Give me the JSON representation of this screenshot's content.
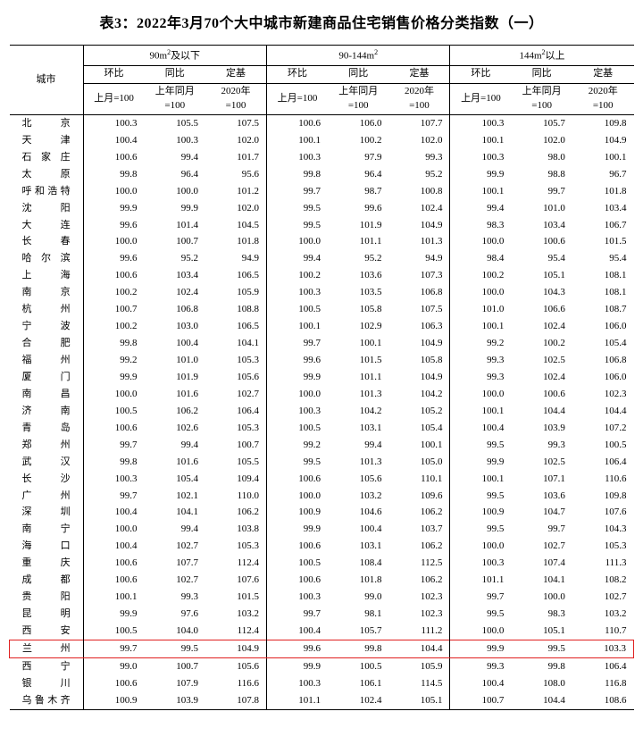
{
  "title": "表3：2022年3月70个大中城市新建商品住宅销售价格分类指数（一）",
  "header": {
    "city": "城市",
    "groups": [
      "90m²及以下",
      "90-144m²",
      "144m²以上"
    ],
    "sub": {
      "huanbi": "环比",
      "tongbi": "同比",
      "dingji": "定基"
    },
    "base": {
      "huanbi": "上月=100",
      "tongbi_l1": "上年同月",
      "tongbi_l2": "=100",
      "dingji_l1": "2020年",
      "dingji_l2": "=100"
    }
  },
  "highlight_city": "兰　　州",
  "highlight_color": "#e02020",
  "rows": [
    {
      "city": "北　　京",
      "v": [
        100.3,
        105.5,
        107.5,
        100.6,
        106.0,
        107.7,
        100.3,
        105.7,
        109.8
      ]
    },
    {
      "city": "天　　津",
      "v": [
        100.4,
        100.3,
        102.0,
        100.1,
        100.2,
        102.0,
        100.1,
        102.0,
        104.9
      ]
    },
    {
      "city": "石 家 庄",
      "v": [
        100.6,
        99.4,
        101.7,
        100.3,
        97.9,
        99.3,
        100.3,
        98.0,
        100.1
      ]
    },
    {
      "city": "太　　原",
      "v": [
        99.8,
        96.4,
        95.6,
        99.8,
        96.4,
        95.2,
        99.9,
        98.8,
        96.7
      ]
    },
    {
      "city": "呼和浩特",
      "v": [
        100.0,
        100.0,
        101.2,
        99.7,
        98.7,
        100.8,
        100.1,
        99.7,
        101.8
      ]
    },
    {
      "city": "沈　　阳",
      "v": [
        99.9,
        99.9,
        102.0,
        99.5,
        99.6,
        102.4,
        99.4,
        101.0,
        103.4
      ]
    },
    {
      "city": "大　　连",
      "v": [
        99.6,
        101.4,
        104.5,
        99.5,
        101.9,
        104.9,
        98.3,
        103.4,
        106.7
      ]
    },
    {
      "city": "长　　春",
      "v": [
        100.0,
        100.7,
        101.8,
        100.0,
        101.1,
        101.3,
        100.0,
        100.6,
        101.5
      ]
    },
    {
      "city": "哈 尔 滨",
      "v": [
        99.6,
        95.2,
        94.9,
        99.4,
        95.2,
        94.9,
        98.4,
        95.4,
        95.4
      ]
    },
    {
      "city": "上　　海",
      "v": [
        100.6,
        103.4,
        106.5,
        100.2,
        103.6,
        107.3,
        100.2,
        105.1,
        108.1
      ]
    },
    {
      "city": "南　　京",
      "v": [
        100.2,
        102.4,
        105.9,
        100.3,
        103.5,
        106.8,
        100.0,
        104.3,
        108.1
      ]
    },
    {
      "city": "杭　　州",
      "v": [
        100.7,
        106.8,
        108.8,
        100.5,
        105.8,
        107.5,
        101.0,
        106.6,
        108.7
      ]
    },
    {
      "city": "宁　　波",
      "v": [
        100.2,
        103.0,
        106.5,
        100.1,
        102.9,
        106.3,
        100.1,
        102.4,
        106.0
      ]
    },
    {
      "city": "合　　肥",
      "v": [
        99.8,
        100.4,
        104.1,
        99.7,
        100.1,
        104.9,
        99.2,
        100.2,
        105.4
      ]
    },
    {
      "city": "福　　州",
      "v": [
        99.2,
        101.0,
        105.3,
        99.6,
        101.5,
        105.8,
        99.3,
        102.5,
        106.8
      ]
    },
    {
      "city": "厦　　门",
      "v": [
        99.9,
        101.9,
        105.6,
        99.9,
        101.1,
        104.9,
        99.3,
        102.4,
        106.0
      ]
    },
    {
      "city": "南　　昌",
      "v": [
        100.0,
        101.6,
        102.7,
        100.0,
        101.3,
        104.2,
        100.0,
        100.6,
        102.3
      ]
    },
    {
      "city": "济　　南",
      "v": [
        100.5,
        106.2,
        106.4,
        100.3,
        104.2,
        105.2,
        100.1,
        104.4,
        104.4
      ]
    },
    {
      "city": "青　　岛",
      "v": [
        100.6,
        102.6,
        105.3,
        100.5,
        103.1,
        105.4,
        100.4,
        103.9,
        107.2
      ]
    },
    {
      "city": "郑　　州",
      "v": [
        99.7,
        99.4,
        100.7,
        99.2,
        99.4,
        100.1,
        99.5,
        99.3,
        100.5
      ]
    },
    {
      "city": "武　　汉",
      "v": [
        99.8,
        101.6,
        105.5,
        99.5,
        101.3,
        105.0,
        99.9,
        102.5,
        106.4
      ]
    },
    {
      "city": "长　　沙",
      "v": [
        100.3,
        105.4,
        109.4,
        100.6,
        105.6,
        110.1,
        100.1,
        107.1,
        110.6
      ]
    },
    {
      "city": "广　　州",
      "v": [
        99.7,
        102.1,
        110.0,
        100.0,
        103.2,
        109.6,
        99.5,
        103.6,
        109.8
      ]
    },
    {
      "city": "深　　圳",
      "v": [
        100.4,
        104.1,
        106.2,
        100.9,
        104.6,
        106.2,
        100.9,
        104.7,
        107.6
      ]
    },
    {
      "city": "南　　宁",
      "v": [
        100.0,
        99.4,
        103.8,
        99.9,
        100.4,
        103.7,
        99.5,
        99.7,
        104.3
      ]
    },
    {
      "city": "海　　口",
      "v": [
        100.4,
        102.7,
        105.3,
        100.6,
        103.1,
        106.2,
        100.0,
        102.7,
        105.3
      ]
    },
    {
      "city": "重　　庆",
      "v": [
        100.6,
        107.7,
        112.4,
        100.5,
        108.4,
        112.5,
        100.3,
        107.4,
        111.3
      ]
    },
    {
      "city": "成　　都",
      "v": [
        100.6,
        102.7,
        107.6,
        100.6,
        101.8,
        106.2,
        101.1,
        104.1,
        108.2
      ]
    },
    {
      "city": "贵　　阳",
      "v": [
        100.1,
        99.3,
        101.5,
        100.3,
        99.0,
        102.3,
        99.7,
        100.0,
        102.7
      ]
    },
    {
      "city": "昆　　明",
      "v": [
        99.9,
        97.6,
        103.2,
        99.7,
        98.1,
        102.3,
        99.5,
        98.3,
        103.2
      ]
    },
    {
      "city": "西　　安",
      "v": [
        100.5,
        104.0,
        112.4,
        100.4,
        105.7,
        111.2,
        100.0,
        105.1,
        110.7
      ]
    },
    {
      "city": "兰　　州",
      "v": [
        99.7,
        99.5,
        104.9,
        99.6,
        99.8,
        104.4,
        99.9,
        99.5,
        103.3
      ]
    },
    {
      "city": "西　　宁",
      "v": [
        99.0,
        100.7,
        105.6,
        99.9,
        100.5,
        105.9,
        99.3,
        99.8,
        106.4
      ]
    },
    {
      "city": "银　　川",
      "v": [
        100.6,
        107.9,
        116.6,
        100.3,
        106.1,
        114.5,
        100.4,
        108.0,
        116.8
      ]
    },
    {
      "city": "乌鲁木齐",
      "v": [
        100.9,
        103.9,
        107.8,
        101.1,
        102.4,
        105.1,
        100.7,
        104.4,
        108.6
      ]
    }
  ]
}
